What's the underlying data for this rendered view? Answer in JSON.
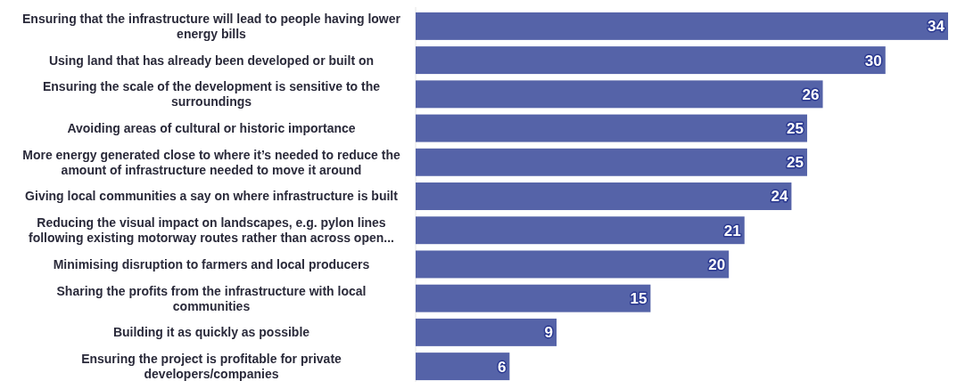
{
  "chart_data": {
    "type": "bar",
    "orientation": "horizontal",
    "data_labels": true,
    "color": "#5563a8",
    "categories": [
      "Ensuring that the infrastructure will lead to people having lower energy bills",
      "Using land that has already been developed or built on",
      "Ensuring the scale of the development is sensitive to the surroundings",
      "Avoiding areas of cultural or historic importance",
      "More energy generated close to where it’s needed to reduce the amount of infrastructure needed to move it around",
      "Giving local communities a say on where infrastructure is built",
      "Reducing the visual impact on landscapes, e.g. pylon lines following existing motorway routes rather than across open...",
      "Minimising disruption to farmers and local producers",
      "Sharing the profits from the infrastructure with local communities",
      "Building it as quickly as possible",
      "Ensuring the project is profitable for private developers/companies"
    ],
    "values": [
      34,
      30,
      26,
      25,
      25,
      24,
      21,
      20,
      15,
      9,
      6
    ]
  }
}
